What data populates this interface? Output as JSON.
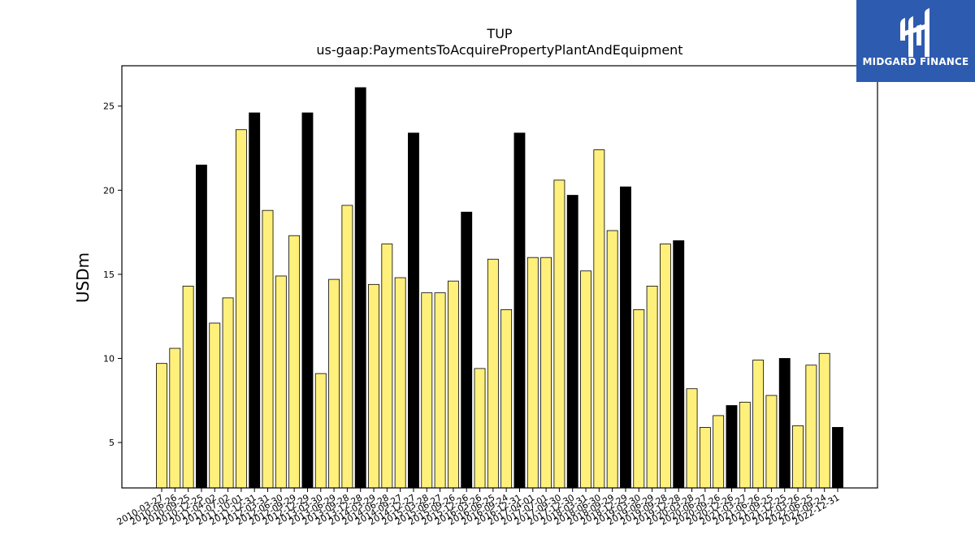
{
  "chart_data": {
    "type": "bar",
    "title": "TUP",
    "subtitle": "us-gaap:PaymentsToAcquirePropertyPlantAndEquipment",
    "ylabel": "USDm",
    "ylim": [
      2.3,
      27.4
    ],
    "yticks": [
      5,
      10,
      15,
      20,
      25
    ],
    "grid": false,
    "categories": [
      "2010-03-27",
      "2010-06-26",
      "2010-09-25",
      "2010-12-25",
      "2011-04-02",
      "2011-07-02",
      "2011-10-01",
      "2011-12-31",
      "2012-03-31",
      "2012-06-30",
      "2012-09-29",
      "2012-12-29",
      "2013-03-30",
      "2013-06-29",
      "2013-09-28",
      "2013-12-28",
      "2014-03-29",
      "2014-06-28",
      "2014-09-27",
      "2014-12-27",
      "2015-03-28",
      "2015-06-27",
      "2015-09-26",
      "2015-12-26",
      "2016-03-26",
      "2016-06-25",
      "2016-09-24",
      "2016-12-31",
      "2017-04-01",
      "2017-07-01",
      "2017-09-30",
      "2017-12-30",
      "2018-03-31",
      "2018-06-30",
      "2018-09-29",
      "2018-12-29",
      "2019-03-30",
      "2019-06-29",
      "2019-09-28",
      "2019-12-28",
      "2020-03-28",
      "2020-06-27",
      "2020-09-26",
      "2020-12-26",
      "2021-03-27",
      "2021-06-26",
      "2021-09-25",
      "2021-12-25",
      "2022-03-26",
      "2022-06-25",
      "2022-09-24",
      "2022-12-31"
    ],
    "values": [
      9.7,
      10.6,
      14.3,
      21.5,
      12.1,
      13.6,
      23.6,
      24.6,
      18.8,
      14.9,
      17.3,
      24.6,
      9.1,
      14.7,
      19.1,
      26.1,
      14.4,
      16.8,
      14.8,
      23.4,
      13.9,
      13.9,
      14.6,
      18.7,
      9.4,
      15.9,
      12.9,
      23.4,
      16.0,
      16.0,
      20.6,
      19.7,
      15.2,
      22.4,
      17.6,
      20.2,
      12.9,
      14.3,
      16.8,
      17.0,
      8.2,
      5.9,
      6.6,
      7.2,
      7.4,
      9.9,
      7.8,
      10.0,
      6.0,
      9.6,
      10.3,
      5.9
    ],
    "highlight": [
      3,
      7,
      11,
      15,
      19,
      23,
      27,
      31,
      35,
      39,
      43,
      47,
      51
    ],
    "colors": {
      "bar": "#fff07c",
      "highlight": "#000000",
      "edge": "#000000"
    }
  },
  "logo": {
    "text": "MIDGARD FINANCE",
    "background": "#2d5bb0"
  }
}
